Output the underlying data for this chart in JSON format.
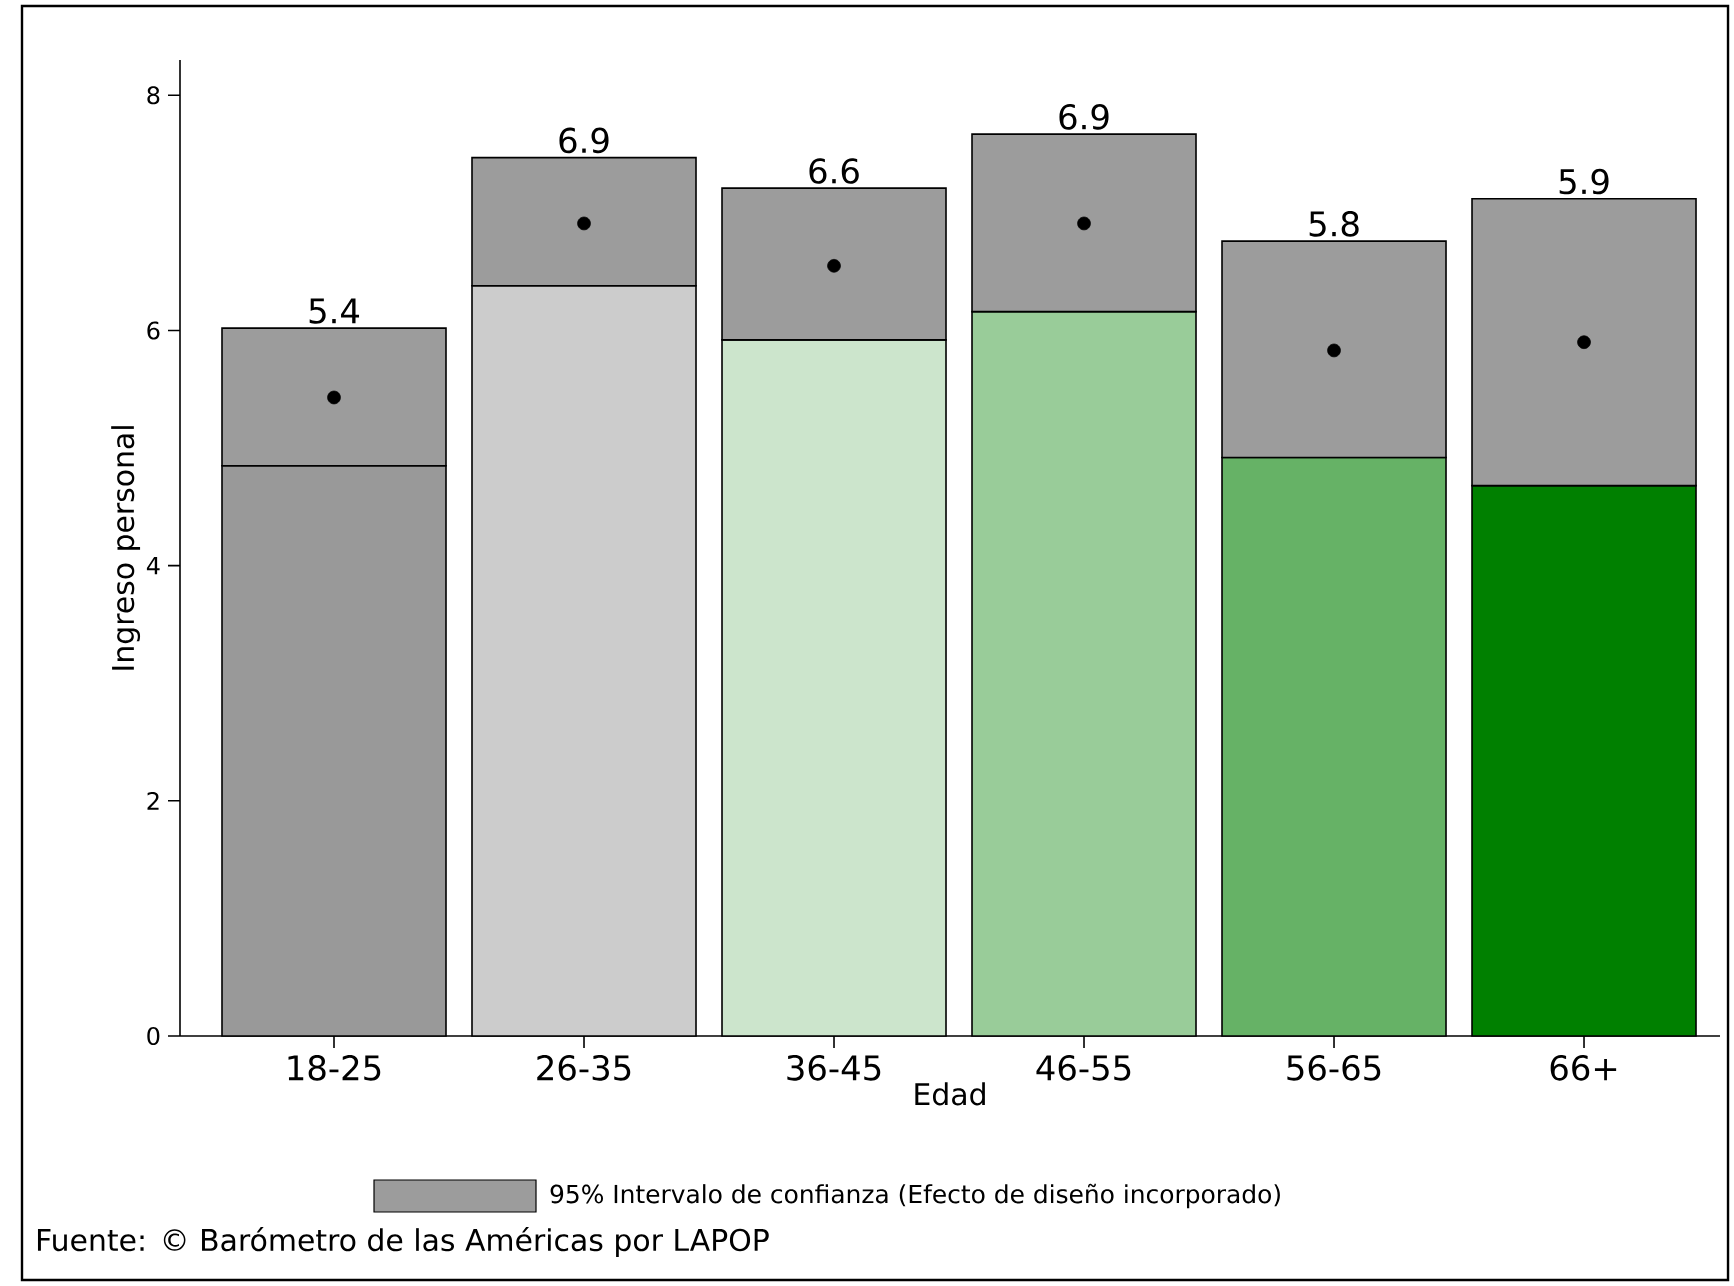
{
  "chart_data": {
    "type": "bar",
    "stacked": true,
    "xlabel": "Edad",
    "ylabel": "Ingreso personal",
    "categories": [
      "18-25",
      "26-35",
      "36-45",
      "46-55",
      "56-65",
      "66+"
    ],
    "series": [
      {
        "colors": [
          "#999999",
          "#cccccc",
          "#cce5cc",
          "#99cc99",
          "#66b266",
          "#008000"
        ],
        "values": [
          4.85,
          6.38,
          5.92,
          6.16,
          4.92,
          4.68
        ]
      },
      {
        "name": "95% Intervalo de confianza (Efecto de diseño incorporado)",
        "color": "#9c9c9c",
        "values": [
          1.17,
          1.09,
          1.29,
          1.51,
          1.84,
          2.44
        ]
      },
      {
        "type": "scatter",
        "x": [
          "18-25",
          "26-35",
          "36-45",
          "46-55",
          "56-65",
          "66+"
        ],
        "color": "#000000",
        "values": [
          5.43,
          6.91,
          6.55,
          6.91,
          5.83,
          5.9
        ]
      }
    ],
    "ylim": [
      0,
      8.3
    ],
    "yticks": [
      0,
      2,
      4,
      6,
      8
    ],
    "legend": "bottom",
    "annotations": [
      {
        "text": "5.4",
        "x": "18-25",
        "y": 6.02
      },
      {
        "text": "6.9",
        "x": "26-35",
        "y": 7.47
      },
      {
        "text": "6.6",
        "x": "36-45",
        "y": 7.21
      },
      {
        "text": "6.9",
        "x": "46-55",
        "y": 7.67
      },
      {
        "text": "5.8",
        "x": "56-65",
        "y": 6.76
      },
      {
        "text": "5.9",
        "x": "66+",
        "y": 7.12
      },
      "Fuente: © Barómetro de las Américas por LAPOP"
    ]
  }
}
